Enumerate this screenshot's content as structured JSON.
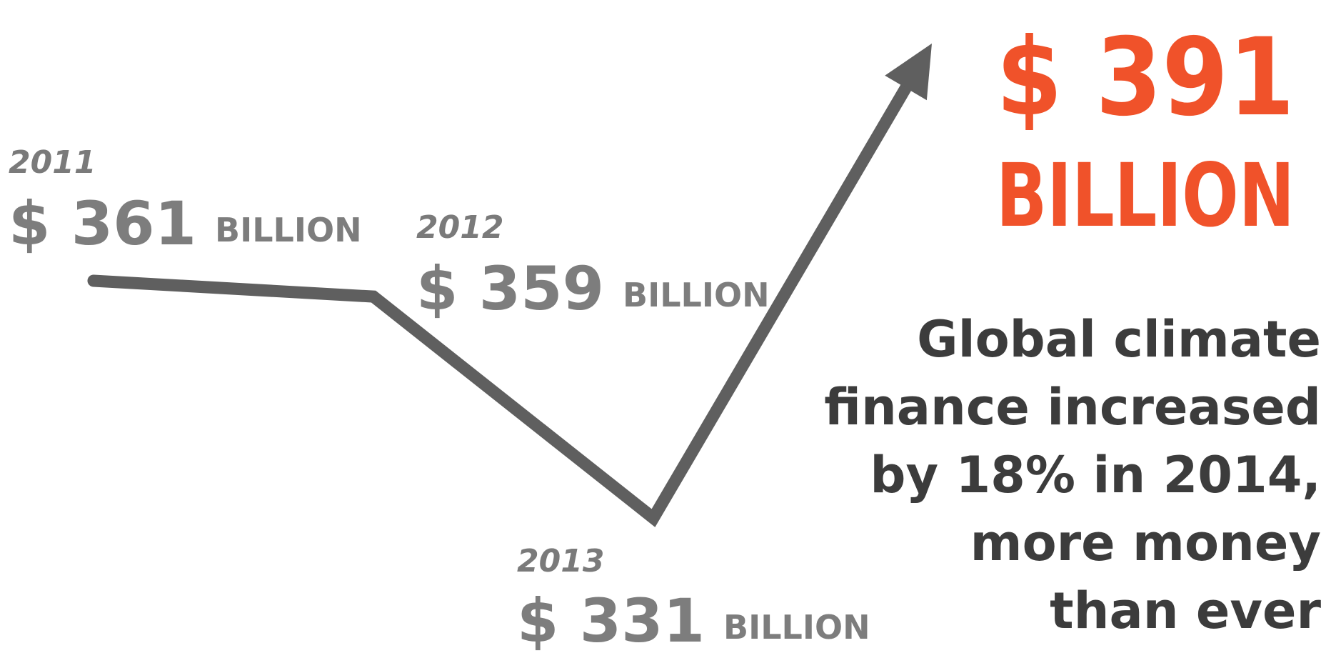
{
  "chart_data": {
    "type": "line",
    "x": [
      "2011",
      "2012",
      "2013",
      "2014"
    ],
    "values": [
      361,
      359,
      331,
      391
    ],
    "point_labels": [
      {
        "year": "2011",
        "amount": "$ 361",
        "unit": "BILLION"
      },
      {
        "year": "2012",
        "amount": "$ 359",
        "unit": "BILLION"
      },
      {
        "year": "2013",
        "amount": "$ 331",
        "unit": "BILLION"
      }
    ],
    "final_label": {
      "amount": "$ 391",
      "unit": "BILLION"
    }
  },
  "headline_lines": [
    "Global climate",
    "finance increased",
    "by 18% in 2014,",
    "more money",
    "than ever"
  ],
  "colors": {
    "line": "#5f5f5f",
    "label": "#7d7d7d",
    "accent": "#f0522a",
    "headline": "#3c3c3c"
  }
}
